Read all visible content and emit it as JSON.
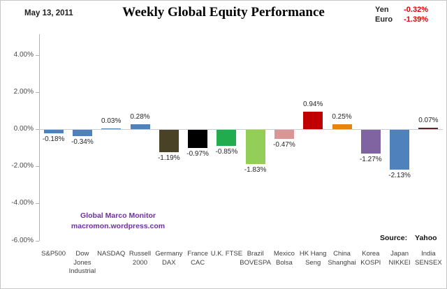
{
  "header": {
    "date": "May 13, 2011",
    "title": "Weekly Global Equity Performance",
    "currencies": [
      {
        "label": "Yen",
        "value": "-0.32%"
      },
      {
        "label": "Euro",
        "value": "-1.39%"
      }
    ],
    "currency_value_color": "#e00000"
  },
  "chart_data": {
    "type": "bar",
    "title": "Weekly Global Equity Performance",
    "categories": [
      "S&P500",
      "Dow Jones Industrial",
      "NASDAQ",
      "Russell 2000",
      "Germany DAX",
      "France CAC",
      "U.K. FTSE",
      "Brazil BOVESPA",
      "Mexico Bolsa",
      "HK Hang Seng",
      "China Shanghai",
      "Korea KOSPI",
      "Japan NIKKEI",
      "India SENSEX"
    ],
    "tick_lines": [
      [
        "S&P500"
      ],
      [
        "Dow",
        "Jones",
        "Industrial"
      ],
      [
        "NASDAQ"
      ],
      [
        "Russell",
        "2000"
      ],
      [
        "Germany",
        "DAX"
      ],
      [
        "France",
        "CAC"
      ],
      [
        "U.K. FTSE"
      ],
      [
        "Brazil",
        "BOVESPA"
      ],
      [
        "Mexico",
        "Bolsa"
      ],
      [
        "HK Hang",
        "Seng"
      ],
      [
        "China",
        "Shanghai"
      ],
      [
        "Korea",
        "KOSPI"
      ],
      [
        "Japan",
        "NIKKEI"
      ],
      [
        "India",
        "SENSEX"
      ]
    ],
    "values": [
      -0.18,
      -0.34,
      0.03,
      0.28,
      -1.19,
      -0.97,
      -0.85,
      -1.83,
      -0.47,
      0.94,
      0.25,
      -1.27,
      -2.13,
      0.07
    ],
    "labels": [
      "-0.18%",
      "-0.34%",
      "0.03%",
      "0.28%",
      "-1.19%",
      "-0.97%",
      "-0.85%",
      "-1.83%",
      "-0.47%",
      "0.94%",
      "0.25%",
      "-1.27%",
      "-2.13%",
      "0.07%"
    ],
    "bar_colors": [
      "#4f81bd",
      "#4f81bd",
      "#4f81bd",
      "#4f81bd",
      "#4a4227",
      "#000000",
      "#22ac4d",
      "#92ce58",
      "#d99694",
      "#c00000",
      "#e8830d",
      "#8064a2",
      "#4f81bd",
      "#622423"
    ],
    "y_ticks": [
      "4.00%",
      "2.00%",
      "0.00%",
      "-2.00%",
      "-4.00%",
      "-6.00%"
    ],
    "ylim": [
      -6,
      4
    ],
    "xlabel": "",
    "ylabel": "",
    "grid": false,
    "legend": false
  },
  "watermark": {
    "line1": "Global Marco Monitor",
    "line2": "macromon.wordpress.com",
    "color": "#7030a0"
  },
  "footer": {
    "source_label": "Source:",
    "source_value": "Yahoo"
  }
}
